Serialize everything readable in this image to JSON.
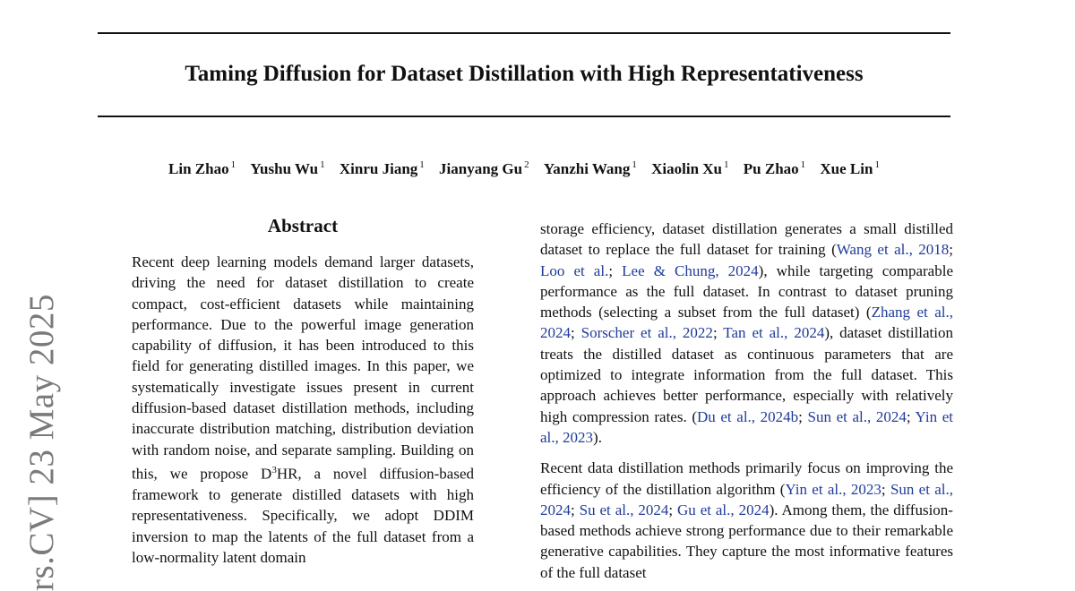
{
  "paper": {
    "title": "Taming Diffusion for Dataset Distillation with High Representativeness",
    "authors": [
      {
        "name": "Lin Zhao",
        "aff": "1"
      },
      {
        "name": "Yushu Wu",
        "aff": "1"
      },
      {
        "name": "Xinru Jiang",
        "aff": "1"
      },
      {
        "name": "Jianyang Gu",
        "aff": "2"
      },
      {
        "name": "Yanzhi Wang",
        "aff": "1"
      },
      {
        "name": "Xiaolin Xu",
        "aff": "1"
      },
      {
        "name": "Pu Zhao",
        "aff": "1"
      },
      {
        "name": "Xue Lin",
        "aff": "1"
      }
    ],
    "arxiv_stamp": "rs.CV]  23 May 2025",
    "abstract_heading": "Abstract",
    "abstract": {
      "part1": "Recent deep learning models demand larger datasets, driving the need for dataset distillation to create compact, cost-efficient datasets while maintaining performance. Due to the powerful image generation capability of diffusion, it has been introduced to this field for generating dis­tilled images. In this paper, we systematically in­vestigate issues present in current diffusion-based dataset distillation methods, including inaccurate distribution matching, distribution deviation with random noise, and separate sampling. Building on this, we propose D",
      "sup": "3",
      "part2": "HR, a novel diffusion-based framework to generate distilled datasets with high representativeness. Specifically, we adopt DDIM inversion to map the latents of the full dataset from a low-normality latent domain"
    },
    "intro_p1": {
      "t1": "storage efficiency, dataset distillation generates a small dis­tilled dataset to replace the full dataset for training (",
      "c1": "Wang et al., 2018",
      "t2": "; ",
      "c2": "Loo et al.",
      "t3": "; ",
      "c3": "Lee & Chung, 2024",
      "t4": "), while target­ing comparable performance as the full dataset. In contrast to dataset pruning methods (selecting a subset from the full dataset) (",
      "c4": "Zhang et al., 2024",
      "t5": "; ",
      "c5": "Sorscher et al., 2022",
      "t6": "; ",
      "c6": "Tan et al., 2024",
      "t7": "), dataset distillation treats the distilled dataset as continuous parameters that are optimized to integrate infor­mation from the full dataset. This approach achieves better performance, especially with relatively high compression rates. (",
      "c7": "Du et al., 2024b",
      "t8": "; ",
      "c8": "Sun et al., 2024",
      "t9": "; ",
      "c9": "Yin et al., 2023",
      "t10": ")."
    },
    "intro_p2": {
      "t1": "Recent data distillation methods primarily focus on improv­ing the efficiency of the distillation algorithm (",
      "c1": "Yin et al., 2023",
      "t2": "; ",
      "c2": "Sun et al., 2024",
      "t3": "; ",
      "c3": "Su et al., 2024",
      "t4": "; ",
      "c4": "Gu et al., 2024",
      "t5": "). Among them, the diffusion-based methods achieve strong performance due to their remarkable generative capabilities. They capture the most informative features of the full dataset"
    }
  }
}
